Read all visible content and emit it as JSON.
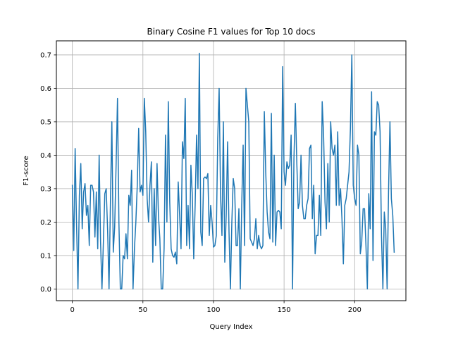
{
  "chart_data": {
    "type": "line",
    "title": "Binary Cosine F1 values for Top 10 docs",
    "xlabel": "Query Index",
    "ylabel": "F1-score",
    "xlim": [
      -11.3,
      236.3
    ],
    "ylim": [
      -0.035,
      0.742
    ],
    "xticks": [
      0,
      50,
      100,
      150,
      200
    ],
    "yticks": [
      0.0,
      0.1,
      0.2,
      0.3,
      0.4,
      0.5,
      0.6,
      0.7
    ],
    "ytick_labels": [
      "0.0",
      "0.1",
      "0.2",
      "0.3",
      "0.4",
      "0.5",
      "0.6",
      "0.7"
    ],
    "grid": true,
    "color": "#1f77b4",
    "series": [
      {
        "name": "",
        "values": [
          0.31,
          0.115,
          0.42,
          0.19,
          0.0,
          0.28,
          0.375,
          0.18,
          0.29,
          0.315,
          0.22,
          0.25,
          0.13,
          0.31,
          0.31,
          0.29,
          0.155,
          0.29,
          0.12,
          0.4,
          0.14,
          0.0,
          0.14,
          0.285,
          0.3,
          0.175,
          0.0,
          0.26,
          0.5,
          0.11,
          0.185,
          0.37,
          0.57,
          0.2,
          0.0,
          0.0,
          0.1,
          0.09,
          0.165,
          0.09,
          0.28,
          0.25,
          0.355,
          0.0,
          0.12,
          0.2,
          0.31,
          0.48,
          0.29,
          0.31,
          0.28,
          0.57,
          0.47,
          0.27,
          0.2,
          0.31,
          0.38,
          0.08,
          0.3,
          0.13,
          0.375,
          0.22,
          0.15,
          0.0,
          0.0,
          0.12,
          0.46,
          0.2,
          0.56,
          0.26,
          0.12,
          0.1,
          0.095,
          0.11,
          0.075,
          0.32,
          0.22,
          0.12,
          0.44,
          0.39,
          0.57,
          0.13,
          0.25,
          0.12,
          0.37,
          0.28,
          0.09,
          0.25,
          0.46,
          0.3,
          0.705,
          0.17,
          0.13,
          0.33,
          0.335,
          0.33,
          0.345,
          0.16,
          0.25,
          0.2,
          0.125,
          0.13,
          0.16,
          0.45,
          0.6,
          0.28,
          0.16,
          0.5,
          0.08,
          0.22,
          0.44,
          0.17,
          0.0,
          0.2,
          0.33,
          0.3,
          0.13,
          0.13,
          0.24,
          0.0,
          0.25,
          0.43,
          0.13,
          0.6,
          0.55,
          0.5,
          0.15,
          0.14,
          0.13,
          0.15,
          0.21,
          0.12,
          0.16,
          0.13,
          0.12,
          0.13,
          0.53,
          0.35,
          0.23,
          0.17,
          0.15,
          0.525,
          0.14,
          0.4,
          0.13,
          0.23,
          0.235,
          0.23,
          0.18,
          0.665,
          0.35,
          0.31,
          0.38,
          0.36,
          0.37,
          0.46,
          0.0,
          0.39,
          0.555,
          0.38,
          0.24,
          0.26,
          0.4,
          0.25,
          0.21,
          0.21,
          0.25,
          0.27,
          0.42,
          0.43,
          0.21,
          0.31,
          0.105,
          0.16,
          0.16,
          0.28,
          0.16,
          0.56,
          0.46,
          0.26,
          0.18,
          0.375,
          0.2,
          0.5,
          0.42,
          0.4,
          0.43,
          0.25,
          0.47,
          0.25,
          0.3,
          0.21,
          0.075,
          0.25,
          0.27,
          0.31,
          0.35,
          0.48,
          0.7,
          0.31,
          0.27,
          0.25,
          0.43,
          0.4,
          0.105,
          0.14,
          0.24,
          0.24,
          0.13,
          0.0,
          0.285,
          0.18,
          0.59,
          0.085,
          0.47,
          0.46,
          0.56,
          0.55,
          0.47,
          0.16,
          0.0,
          0.23,
          0.18,
          0.0,
          0.29,
          0.5,
          0.27,
          0.22,
          0.11
        ]
      }
    ]
  }
}
